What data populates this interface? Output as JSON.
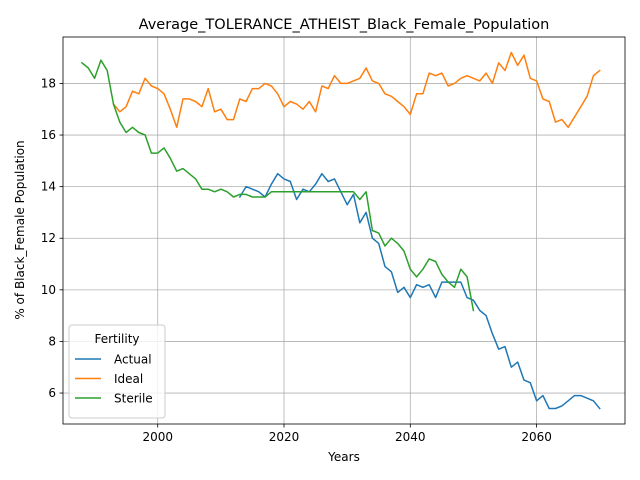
{
  "chart_data": {
    "type": "line",
    "title": "Average_TOLERANCE_ATHEIST_Black_Female_Population",
    "xlabel": "Years",
    "ylabel": "% of Black_Female Population",
    "xlim": [
      1985,
      2074
    ],
    "ylim": [
      4.8,
      19.8
    ],
    "xticks": [
      2000,
      2020,
      2040,
      2060
    ],
    "yticks": [
      6,
      8,
      10,
      12,
      14,
      16,
      18
    ],
    "grid": true,
    "legend": {
      "title": "Fertility",
      "placement": "lower-left"
    },
    "series": [
      {
        "name": "Actual",
        "color": "#1f77b4",
        "x": [
          2013,
          2014,
          2015,
          2016,
          2017,
          2018,
          2019,
          2020,
          2021,
          2022,
          2023,
          2024,
          2025,
          2026,
          2027,
          2028,
          2029,
          2030,
          2031,
          2032,
          2033,
          2034,
          2035,
          2036,
          2037,
          2038,
          2039,
          2040,
          2041,
          2042,
          2043,
          2044,
          2045,
          2046,
          2047,
          2048,
          2049,
          2050,
          2051,
          2052,
          2053,
          2054,
          2055,
          2056,
          2057,
          2058,
          2059,
          2060,
          2061,
          2062,
          2063,
          2064,
          2065,
          2066,
          2067,
          2068,
          2069,
          2070
        ],
        "values": [
          13.6,
          14.0,
          13.9,
          13.8,
          13.6,
          14.1,
          14.5,
          14.3,
          14.2,
          13.5,
          13.9,
          13.8,
          14.1,
          14.5,
          14.2,
          14.3,
          13.8,
          13.3,
          13.7,
          12.6,
          13.0,
          12.0,
          11.8,
          10.9,
          10.7,
          9.9,
          10.1,
          9.7,
          10.2,
          10.1,
          10.2,
          9.7,
          10.3,
          10.3,
          10.3,
          10.3,
          9.7,
          9.6,
          9.2,
          9.0,
          8.3,
          7.7,
          7.8,
          7.0,
          7.2,
          6.5,
          6.4,
          5.7,
          5.9,
          5.4,
          5.4,
          5.5,
          5.7,
          5.9,
          5.9,
          5.8,
          5.7,
          5.4
        ]
      },
      {
        "name": "Ideal",
        "color": "#ff7f0e",
        "x": [
          1993,
          1994,
          1995,
          1996,
          1997,
          1998,
          1999,
          2000,
          2001,
          2002,
          2003,
          2004,
          2005,
          2006,
          2007,
          2008,
          2009,
          2010,
          2011,
          2012,
          2013,
          2014,
          2015,
          2016,
          2017,
          2018,
          2019,
          2020,
          2021,
          2022,
          2023,
          2024,
          2025,
          2026,
          2027,
          2028,
          2029,
          2030,
          2031,
          2032,
          2033,
          2034,
          2035,
          2036,
          2037,
          2038,
          2039,
          2040,
          2041,
          2042,
          2043,
          2044,
          2045,
          2046,
          2047,
          2048,
          2049,
          2050,
          2051,
          2052,
          2053,
          2054,
          2055,
          2056,
          2057,
          2058,
          2059,
          2060,
          2061,
          2062,
          2063,
          2064,
          2065,
          2066,
          2067,
          2068,
          2069,
          2070
        ],
        "values": [
          17.2,
          16.9,
          17.1,
          17.7,
          17.6,
          18.2,
          17.9,
          17.8,
          17.6,
          17.0,
          16.3,
          17.4,
          17.4,
          17.3,
          17.1,
          17.8,
          16.9,
          17.0,
          16.6,
          16.6,
          17.4,
          17.3,
          17.8,
          17.8,
          18.0,
          17.9,
          17.6,
          17.1,
          17.3,
          17.2,
          17.0,
          17.3,
          16.9,
          17.9,
          17.8,
          18.3,
          18.0,
          18.0,
          18.1,
          18.2,
          18.6,
          18.1,
          18.0,
          17.6,
          17.5,
          17.3,
          17.1,
          16.8,
          17.6,
          17.6,
          18.4,
          18.3,
          18.4,
          17.9,
          18.0,
          18.2,
          18.3,
          18.2,
          18.1,
          18.4,
          18.0,
          18.8,
          18.5,
          19.2,
          18.7,
          19.1,
          18.2,
          18.1,
          17.4,
          17.3,
          16.5,
          16.6,
          16.3,
          16.7,
          17.1,
          17.5,
          18.3,
          18.5
        ]
      },
      {
        "name": "Sterile",
        "color": "#2ca02c",
        "x": [
          1988,
          1989,
          1990,
          1991,
          1992,
          1993,
          1994,
          1995,
          1996,
          1997,
          1998,
          1999,
          2000,
          2001,
          2002,
          2003,
          2004,
          2005,
          2006,
          2007,
          2008,
          2009,
          2010,
          2011,
          2012,
          2013,
          2014,
          2015,
          2016,
          2017,
          2018,
          2019,
          2020,
          2021,
          2022,
          2023,
          2024,
          2025,
          2026,
          2027,
          2028,
          2029,
          2030,
          2031,
          2032,
          2033,
          2034,
          2035,
          2036,
          2037,
          2038,
          2039,
          2040,
          2041,
          2042,
          2043,
          2044,
          2045,
          2046,
          2047,
          2048,
          2049,
          2050
        ],
        "values": [
          18.8,
          18.6,
          18.2,
          18.9,
          18.5,
          17.2,
          16.5,
          16.1,
          16.3,
          16.1,
          16.0,
          15.3,
          15.3,
          15.5,
          15.1,
          14.6,
          14.7,
          14.5,
          14.3,
          13.9,
          13.9,
          13.8,
          13.9,
          13.8,
          13.6,
          13.7,
          13.7,
          13.6,
          13.6,
          13.6,
          13.8,
          13.8,
          13.8,
          13.8,
          13.8,
          13.8,
          13.8,
          13.8,
          13.8,
          13.8,
          13.8,
          13.8,
          13.8,
          13.8,
          13.5,
          13.8,
          12.3,
          12.2,
          11.7,
          12.0,
          11.8,
          11.5,
          10.8,
          10.5,
          10.8,
          11.2,
          11.1,
          10.6,
          10.3,
          10.1,
          10.8,
          10.5,
          9.2
        ]
      }
    ]
  }
}
